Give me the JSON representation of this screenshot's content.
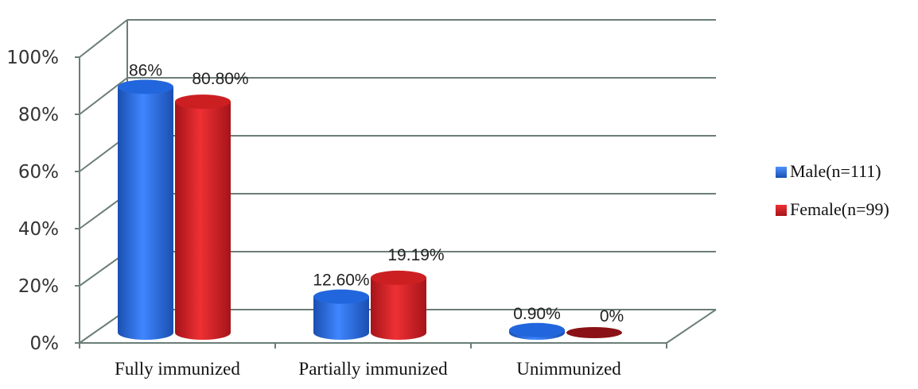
{
  "chart_data": {
    "type": "bar",
    "categories": [
      "Fully immunized",
      "Partially immunized",
      "Unimmunized"
    ],
    "series": [
      {
        "name": "Male(n=111)",
        "values": [
          86,
          12.6,
          0.9
        ],
        "labels": [
          "86%",
          "12.60%",
          "0.90%"
        ],
        "color": "#2266dd"
      },
      {
        "name": "Female(n=99)",
        "values": [
          80.8,
          19.19,
          0
        ],
        "labels": [
          "80.80%",
          "19.19%",
          "0%"
        ],
        "color": "#cc1f22"
      }
    ],
    "yticks": [
      "0%",
      "20%",
      "40%",
      "60%",
      "80%",
      "100%"
    ],
    "ylim": [
      0,
      100
    ],
    "grid": true,
    "legend_position": "right",
    "title": "",
    "xlabel": "",
    "ylabel": ""
  }
}
